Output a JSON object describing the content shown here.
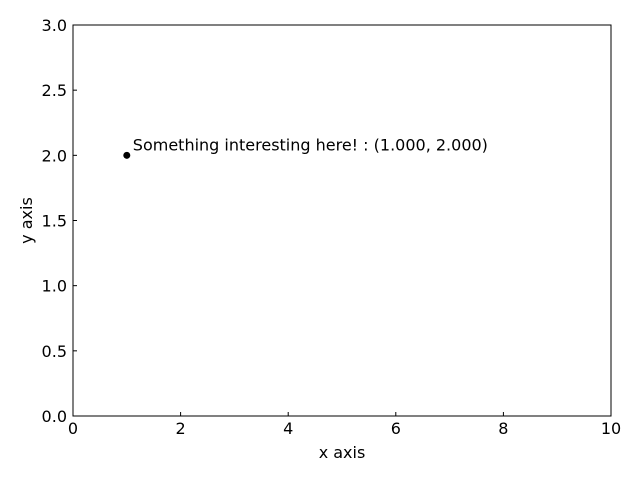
{
  "chart_data": {
    "type": "scatter",
    "xlabel": "x axis",
    "ylabel": "y axis",
    "xlim": [
      0,
      10
    ],
    "ylim": [
      0,
      3
    ],
    "xticks": [
      0,
      2,
      4,
      6,
      8,
      10
    ],
    "yticks": [
      0.0,
      0.5,
      1.0,
      1.5,
      2.0,
      2.5,
      3.0
    ],
    "xtick_labels": [
      "0",
      "2",
      "4",
      "6",
      "8",
      "10"
    ],
    "ytick_labels": [
      "0.0",
      "0.5",
      "1.0",
      "1.5",
      "2.0",
      "2.5",
      "3.0"
    ],
    "grid": false,
    "tick_direction": "in",
    "points": [
      {
        "x": 1,
        "y": 2,
        "color": "#000000"
      }
    ],
    "annotations": [
      {
        "text": "Something interesting here! : (1.000, 2.000)",
        "x": 1,
        "y": 2
      }
    ],
    "colors": {
      "frame": "#000000",
      "marker": "#000000",
      "background": "#ffffff"
    }
  }
}
